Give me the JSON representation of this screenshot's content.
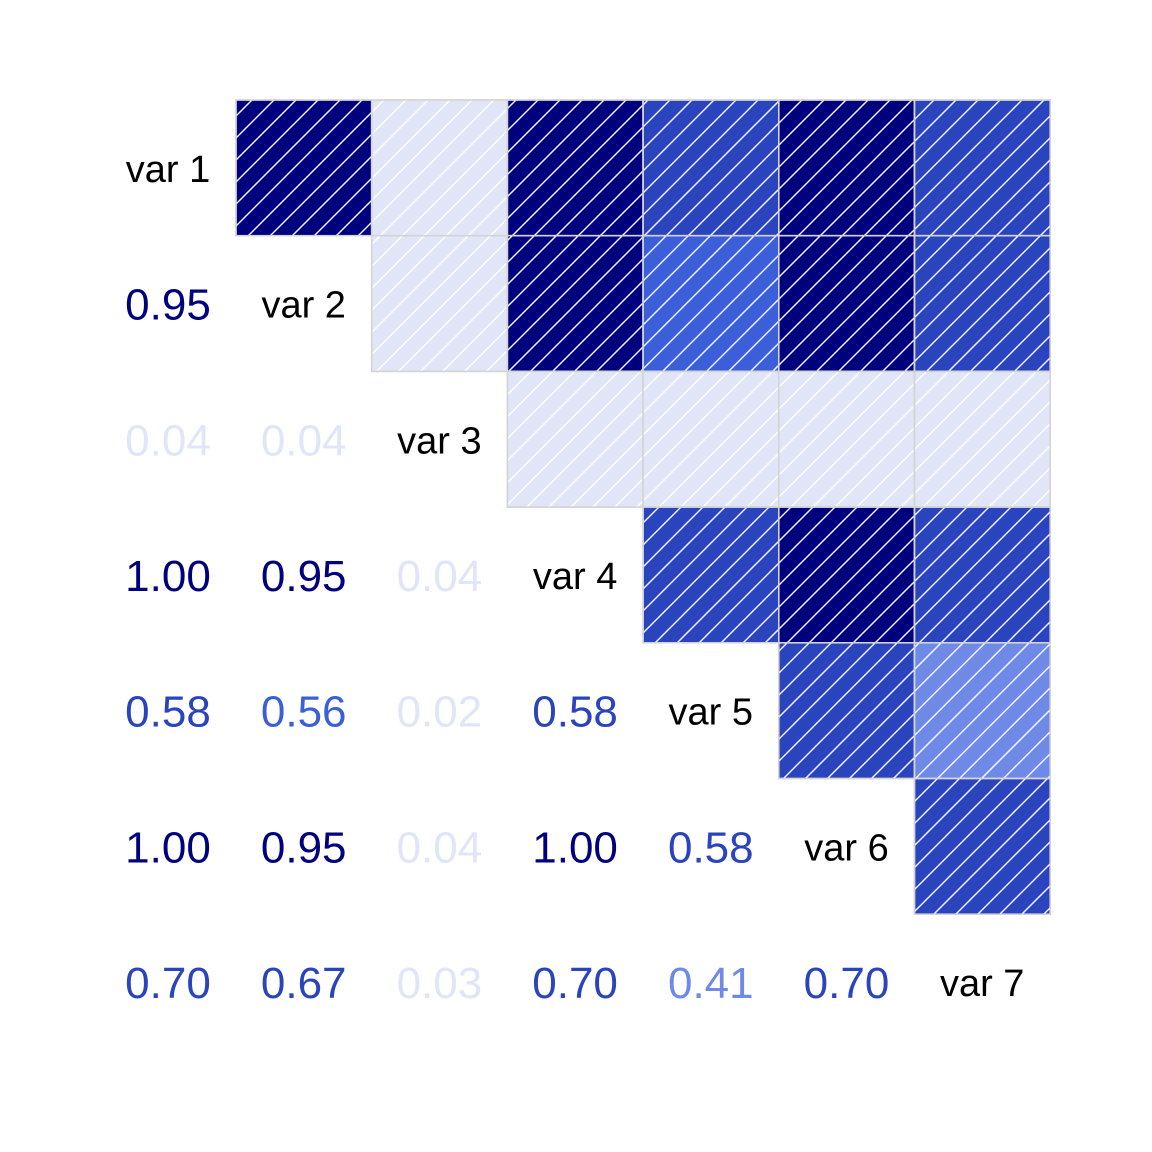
{
  "chart_data": {
    "type": "heatmap",
    "subtype": "correlation-matrix",
    "variables": [
      "var 1",
      "var 2",
      "var 3",
      "var 4",
      "var 5",
      "var 6",
      "var 7"
    ],
    "matrix": [
      [
        1.0,
        0.95,
        0.04,
        1.0,
        0.58,
        1.0,
        0.7
      ],
      [
        0.95,
        1.0,
        0.04,
        0.95,
        0.56,
        0.95,
        0.67
      ],
      [
        0.04,
        0.04,
        1.0,
        0.04,
        0.02,
        0.04,
        0.03
      ],
      [
        1.0,
        0.95,
        0.04,
        1.0,
        0.58,
        1.0,
        0.7
      ],
      [
        0.58,
        0.56,
        0.02,
        0.58,
        1.0,
        0.58,
        0.41
      ],
      [
        1.0,
        0.95,
        0.04,
        1.0,
        0.58,
        1.0,
        0.7
      ],
      [
        0.7,
        0.67,
        0.03,
        0.7,
        0.41,
        0.7,
        1.0
      ]
    ],
    "lower_triangle_labels": [
      [
        "0.95"
      ],
      [
        "0.04",
        "0.04"
      ],
      [
        "1.00",
        "0.95",
        "0.04"
      ],
      [
        "0.58",
        "0.56",
        "0.02",
        "0.58"
      ],
      [
        "1.00",
        "0.95",
        "0.04",
        "1.00",
        "0.58"
      ],
      [
        "0.70",
        "0.67",
        "0.03",
        "0.70",
        "0.41",
        "0.70"
      ]
    ],
    "upper_triangle": "shaded tiles with white diagonal hatching",
    "diagonal": "variable names",
    "colors": {
      "strongest": "#00007f",
      "strong": "#2a44bd",
      "medium": "#3b5fd9",
      "weak": "#6f89e6",
      "weakest": "#e0e6f8",
      "tile_border": "#d4d4d4",
      "hatch": "#ffffff",
      "diagonal_text": "#000000"
    },
    "grid": false,
    "legend": "none"
  }
}
